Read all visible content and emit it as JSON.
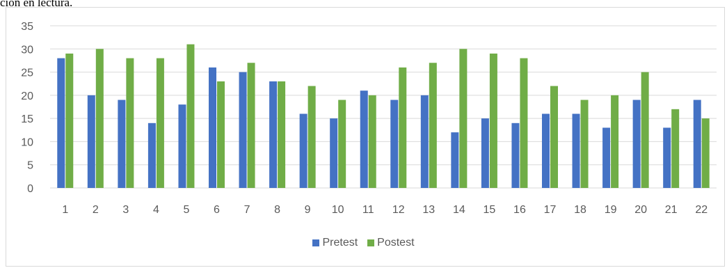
{
  "caption": "ción en lectura.",
  "chart_data": {
    "type": "bar",
    "categories": [
      "1",
      "2",
      "3",
      "4",
      "5",
      "6",
      "7",
      "8",
      "9",
      "10",
      "11",
      "12",
      "13",
      "14",
      "15",
      "16",
      "17",
      "18",
      "19",
      "20",
      "21",
      "22"
    ],
    "series": [
      {
        "name": "Pretest",
        "color": "#4472C4",
        "values": [
          28,
          20,
          19,
          14,
          18,
          26,
          25,
          23,
          16,
          15,
          21,
          19,
          20,
          12,
          15,
          14,
          16,
          16,
          13,
          19,
          13,
          19
        ]
      },
      {
        "name": "Postest",
        "color": "#70AD47",
        "values": [
          29,
          30,
          28,
          28,
          31,
          23,
          27,
          23,
          22,
          19,
          20,
          26,
          27,
          30,
          29,
          28,
          22,
          19,
          20,
          25,
          17,
          15
        ]
      }
    ],
    "ylim": [
      0,
      35
    ],
    "yticks": [
      0,
      5,
      10,
      15,
      20,
      25,
      30,
      35
    ],
    "grid": true,
    "legend": "bottom"
  }
}
